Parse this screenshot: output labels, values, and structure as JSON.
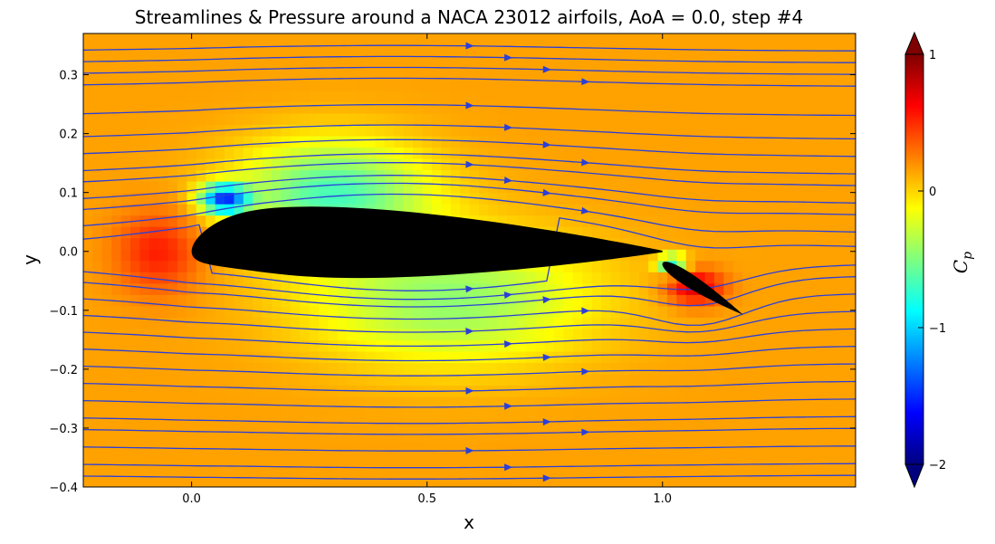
{
  "chart_data": {
    "type": "heatmap",
    "title": "Streamlines & Pressure around a NACA 23012 airfoils, AoA = 0.0, step #4",
    "xlabel": "x",
    "ylabel": "y",
    "xlim": [
      -0.23,
      1.41
    ],
    "ylim": [
      -0.4,
      0.37
    ],
    "xticks": [
      {
        "value": 0.0,
        "label": "0.0"
      },
      {
        "value": 0.5,
        "label": "0.5"
      },
      {
        "value": 1.0,
        "label": "1.0"
      }
    ],
    "yticks": [
      {
        "value": 0.3,
        "label": "0.3"
      },
      {
        "value": 0.2,
        "label": "0.2"
      },
      {
        "value": 0.1,
        "label": "0.1"
      },
      {
        "value": 0.0,
        "label": "0.0"
      },
      {
        "value": -0.1,
        "label": "−0.1"
      },
      {
        "value": -0.2,
        "label": "−0.2"
      },
      {
        "value": -0.3,
        "label": "−0.3"
      },
      {
        "value": -0.4,
        "label": "−0.4"
      }
    ],
    "grid": false,
    "colorbar": {
      "label": "C",
      "label_subscript": "p",
      "range": [
        -2,
        1
      ],
      "colormap": "jet",
      "extend": "both",
      "ticks": [
        {
          "value": 1,
          "label": "1"
        },
        {
          "value": 0,
          "label": "0"
        },
        {
          "value": -1,
          "label": "−1"
        },
        {
          "value": -2,
          "label": "−2"
        }
      ]
    },
    "pressure_field": {
      "freestream_cp": 0.15,
      "regions": [
        {
          "x": -0.07,
          "y": 0.0,
          "cp": 0.55,
          "sx": 0.09,
          "sy": 0.07
        },
        {
          "x": 0.07,
          "y": 0.09,
          "cp": -1.3,
          "sx": 0.05,
          "sy": 0.025
        },
        {
          "x": 0.3,
          "y": 0.1,
          "cp": -0.65,
          "sx": 0.2,
          "sy": 0.09
        },
        {
          "x": 0.55,
          "y": -0.08,
          "cp": -0.45,
          "sx": 0.3,
          "sy": 0.11
        },
        {
          "x": 1.07,
          "y": -0.06,
          "cp": 0.75,
          "sx": 0.06,
          "sy": 0.03
        },
        {
          "x": 1.02,
          "y": -0.02,
          "cp": -0.9,
          "sx": 0.03,
          "sy": 0.015
        }
      ]
    },
    "bodies": [
      {
        "name": "main-airfoil",
        "profile": "NACA 23012",
        "chord": 1.0,
        "leading_edge": [
          0.0,
          0.0
        ],
        "trailing_edge": [
          1.0,
          0.0
        ]
      },
      {
        "name": "flap",
        "leading_edge": [
          1.0,
          -0.02
        ],
        "trailing_edge": [
          1.17,
          -0.107
        ]
      }
    ],
    "streamlines": {
      "color": "#2b3fd8",
      "start_x": -0.23,
      "start_y": [
        0.34,
        0.32,
        0.3,
        0.28,
        0.23,
        0.19,
        0.16,
        0.13,
        0.11,
        0.08,
        0.06,
        0.03,
        0.005,
        -0.02,
        -0.04,
        -0.07,
        -0.1,
        -0.13,
        -0.16,
        -0.19,
        -0.22,
        -0.25,
        -0.28,
        -0.3,
        -0.33,
        -0.36,
        -0.38
      ]
    }
  }
}
